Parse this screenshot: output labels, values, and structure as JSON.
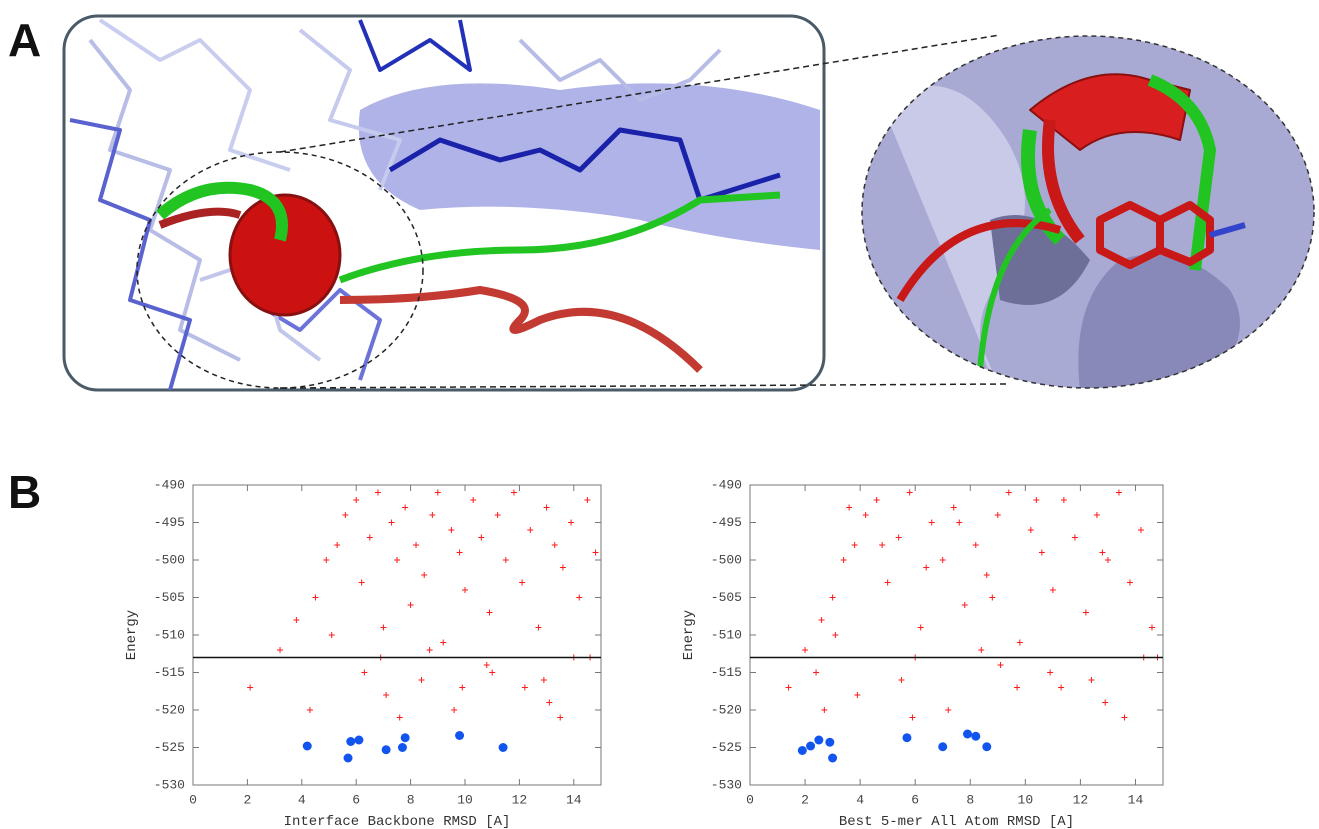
{
  "panel_labels": [
    "A",
    "B"
  ],
  "chart_data": [
    {
      "type": "scatter",
      "xlabel": "Interface Backbone RMSD [A]",
      "ylabel": "Energy",
      "xlim": [
        0,
        15
      ],
      "ylim": [
        -530,
        -490
      ],
      "xticks": [
        0,
        2,
        4,
        6,
        8,
        10,
        12,
        14
      ],
      "yticks": [
        -490,
        -495,
        -500,
        -505,
        -510,
        -515,
        -520,
        -525,
        -530
      ],
      "hline": -513,
      "series": [
        {
          "color": "#ff1a1a",
          "marker": "plus",
          "x": [
            2.1,
            3.2,
            3.8,
            4.5,
            4.9,
            5.3,
            5.6,
            6.0,
            6.2,
            6.5,
            6.8,
            7.0,
            7.3,
            7.5,
            7.8,
            8.0,
            8.2,
            8.5,
            8.8,
            9.0,
            9.2,
            9.5,
            9.8,
            10.0,
            10.3,
            10.6,
            10.9,
            11.2,
            11.5,
            11.8,
            12.1,
            12.4,
            12.7,
            13.0,
            13.3,
            13.6,
            13.9,
            14.2,
            14.5,
            14.8,
            6.3,
            7.1,
            8.4,
            9.6,
            10.8,
            12.2,
            13.5,
            14.6,
            5.1,
            6.9,
            8.7,
            11.0,
            13.1,
            4.3,
            7.6,
            9.9,
            12.9,
            14.0
          ],
          "values": [
            -517,
            -512,
            -508,
            -505,
            -500,
            -498,
            -494,
            -492,
            -503,
            -497,
            -491,
            -509,
            -495,
            -500,
            -493,
            -506,
            -498,
            -502,
            -494,
            -491,
            -511,
            -496,
            -499,
            -504,
            -492,
            -497,
            -507,
            -494,
            -500,
            -491,
            -503,
            -496,
            -509,
            -493,
            -498,
            -501,
            -495,
            -505,
            -492,
            -499,
            -515,
            -518,
            -516,
            -520,
            -514,
            -517,
            -521,
            -513,
            -510,
            -513,
            -512,
            -515,
            -519,
            -520,
            -521,
            -517,
            -516,
            -513
          ]
        },
        {
          "color": "#1155ee",
          "marker": "circle",
          "x": [
            4.2,
            5.7,
            5.8,
            6.1,
            7.1,
            7.7,
            7.8,
            9.8,
            11.4
          ],
          "values": [
            -524.8,
            -526.4,
            -524.2,
            -524.0,
            -525.3,
            -525.0,
            -523.7,
            -523.4,
            -525.0
          ]
        }
      ]
    },
    {
      "type": "scatter",
      "xlabel": "Best 5-mer All Atom RMSD [A]",
      "ylabel": "Energy",
      "xlim": [
        0,
        15
      ],
      "ylim": [
        -530,
        -490
      ],
      "xticks": [
        0,
        2,
        4,
        6,
        8,
        10,
        12,
        14
      ],
      "yticks": [
        -490,
        -495,
        -500,
        -505,
        -510,
        -515,
        -520,
        -525,
        -530
      ],
      "hline": -513,
      "series": [
        {
          "color": "#ff1a1a",
          "marker": "plus",
          "x": [
            1.4,
            2.0,
            2.6,
            3.0,
            3.4,
            3.8,
            4.2,
            4.6,
            5.0,
            5.4,
            5.8,
            6.2,
            6.6,
            7.0,
            7.4,
            7.8,
            8.2,
            8.6,
            9.0,
            9.4,
            9.8,
            10.2,
            10.6,
            11.0,
            11.4,
            11.8,
            12.2,
            12.6,
            13.0,
            13.4,
            13.8,
            14.2,
            14.6,
            3.6,
            4.8,
            6.4,
            7.6,
            8.8,
            10.4,
            12.8,
            2.4,
            3.9,
            5.5,
            7.2,
            9.1,
            11.3,
            13.6,
            14.8,
            3.1,
            6.0,
            8.4,
            10.9,
            12.9,
            2.7,
            5.9,
            9.7,
            12.4,
            14.3
          ],
          "values": [
            -517,
            -512,
            -508,
            -505,
            -500,
            -498,
            -494,
            -492,
            -503,
            -497,
            -491,
            -509,
            -495,
            -500,
            -493,
            -506,
            -498,
            -502,
            -494,
            -491,
            -511,
            -496,
            -499,
            -504,
            -492,
            -497,
            -507,
            -494,
            -500,
            -491,
            -503,
            -496,
            -509,
            -493,
            -498,
            -501,
            -495,
            -505,
            -492,
            -499,
            -515,
            -518,
            -516,
            -520,
            -514,
            -517,
            -521,
            -513,
            -510,
            -513,
            -512,
            -515,
            -519,
            -520,
            -521,
            -517,
            -516,
            -513
          ]
        },
        {
          "color": "#1155ee",
          "marker": "circle",
          "x": [
            1.9,
            2.2,
            2.5,
            2.9,
            3.0,
            5.7,
            7.0,
            7.9,
            8.2,
            8.6
          ],
          "values": [
            -525.4,
            -524.8,
            -524.0,
            -524.3,
            -526.4,
            -523.7,
            -524.9,
            -523.2,
            -523.5,
            -524.9
          ]
        }
      ]
    }
  ]
}
